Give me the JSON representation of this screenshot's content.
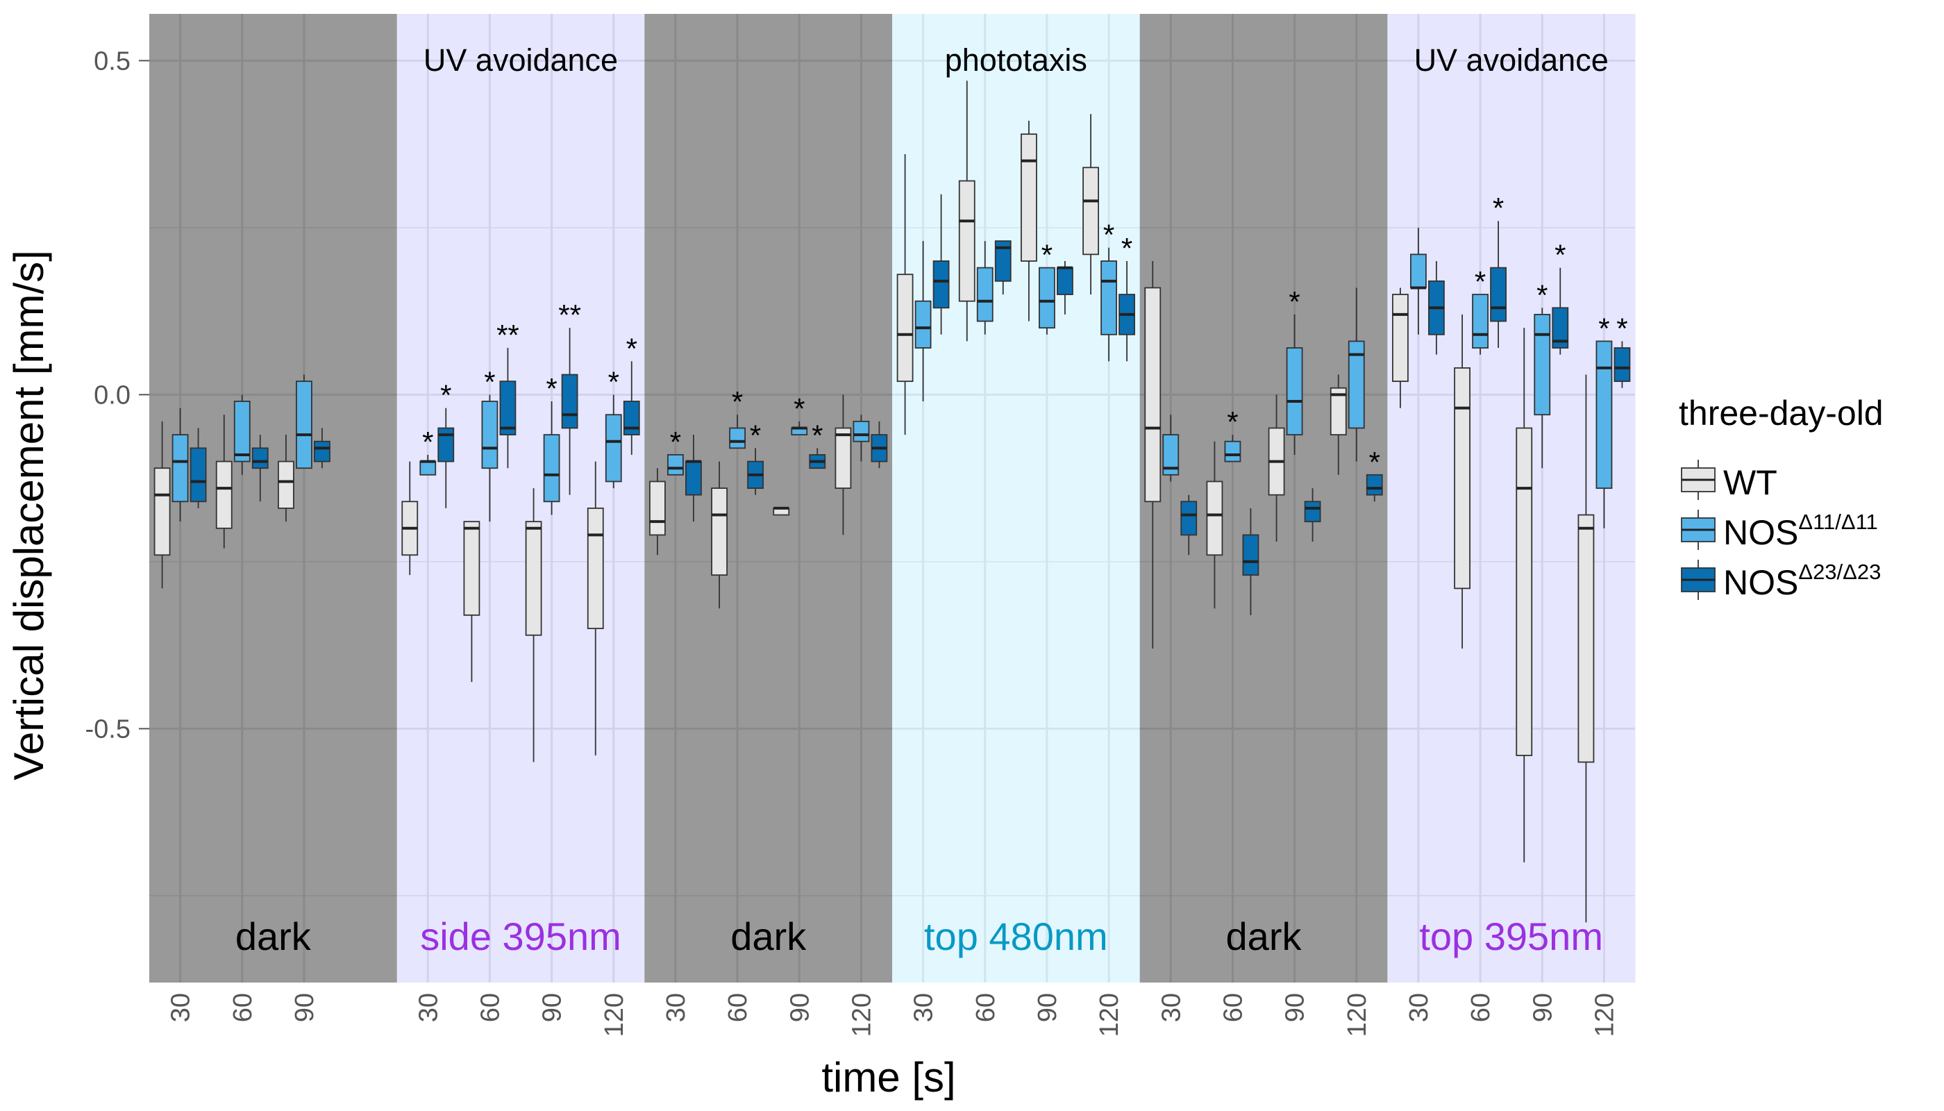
{
  "chart_data": {
    "type": "box",
    "ylabel": "Vertical displacement [mm/s]",
    "xlabel": "time [s]",
    "ylim": [
      -0.88,
      0.57
    ],
    "y_ticks": [
      0.5,
      0.0,
      -0.5
    ],
    "y_tick_labels": [
      "0.5",
      "0.0",
      "-0.5"
    ],
    "grid": true,
    "legend": {
      "title": "three-day-old",
      "position": "right",
      "entries": [
        {
          "base": "WT",
          "sup": "",
          "color": "#e6e6e6"
        },
        {
          "base": "NOS",
          "sup": "Δ11/Δ11",
          "color": "#56b4e9"
        },
        {
          "base": "NOS",
          "sup": "Δ23/Δ23",
          "color": "#0a6fb0"
        }
      ]
    },
    "colors": {
      "dark": "#999999",
      "uv": "#e6e6ff",
      "blue": "#e3f7ff",
      "uv_text": "#9b30e0",
      "blue_text": "#0899c4",
      "wt": "#e6e6e6",
      "nos11": "#56b4e9",
      "nos23": "#0a6fb0"
    },
    "panels": [
      {
        "title": "",
        "condition": "dark",
        "bg": "dark",
        "cond_color": "#000000",
        "ticks": [
          "30",
          "60",
          "90"
        ],
        "groups": [
          {
            "t": 30,
            "boxes": [
              [
                -0.29,
                -0.24,
                -0.15,
                -0.11,
                -0.04
              ],
              [
                -0.19,
                -0.16,
                -0.1,
                -0.06,
                -0.02
              ],
              [
                -0.17,
                -0.16,
                -0.13,
                -0.08,
                -0.05
              ]
            ],
            "stars": [
              "",
              "",
              ""
            ]
          },
          {
            "t": 60,
            "boxes": [
              [
                -0.23,
                -0.2,
                -0.14,
                -0.1,
                -0.03
              ],
              [
                -0.12,
                -0.1,
                -0.09,
                -0.01,
                0.0
              ],
              [
                -0.16,
                -0.11,
                -0.1,
                -0.08,
                -0.06
              ]
            ],
            "stars": [
              "",
              "",
              ""
            ]
          },
          {
            "t": 90,
            "boxes": [
              [
                -0.19,
                -0.17,
                -0.13,
                -0.1,
                -0.06
              ],
              [
                -0.11,
                -0.11,
                -0.06,
                0.02,
                0.03
              ],
              [
                -0.11,
                -0.1,
                -0.08,
                -0.07,
                -0.05
              ]
            ],
            "stars": [
              "",
              "",
              ""
            ]
          }
        ]
      },
      {
        "title": "UV avoidance",
        "condition": "side 395nm",
        "bg": "uv",
        "cond_color": "#9b30e0",
        "ticks": [
          "30",
          "60",
          "90",
          "120"
        ],
        "groups": [
          {
            "t": 30,
            "boxes": [
              [
                -0.27,
                -0.24,
                -0.2,
                -0.16,
                -0.1
              ],
              [
                -0.12,
                -0.12,
                -0.1,
                -0.1,
                -0.09
              ],
              [
                -0.17,
                -0.1,
                -0.06,
                -0.05,
                -0.02
              ]
            ],
            "stars": [
              "",
              "*",
              "*"
            ]
          },
          {
            "t": 60,
            "boxes": [
              [
                -0.43,
                -0.33,
                -0.2,
                -0.19,
                -0.19
              ],
              [
                -0.19,
                -0.11,
                -0.08,
                -0.01,
                0.0
              ],
              [
                -0.11,
                -0.06,
                -0.05,
                0.02,
                0.07
              ]
            ],
            "stars": [
              "",
              "*",
              "**"
            ]
          },
          {
            "t": 90,
            "boxes": [
              [
                -0.55,
                -0.36,
                -0.2,
                -0.19,
                -0.14
              ],
              [
                -0.18,
                -0.16,
                -0.12,
                -0.06,
                -0.01
              ],
              [
                -0.15,
                -0.05,
                -0.03,
                0.03,
                0.1
              ]
            ],
            "stars": [
              "",
              "*",
              "**"
            ]
          },
          {
            "t": 120,
            "boxes": [
              [
                -0.54,
                -0.35,
                -0.21,
                -0.17,
                -0.1
              ],
              [
                -0.14,
                -0.13,
                -0.07,
                -0.03,
                0.0
              ],
              [
                -0.09,
                -0.06,
                -0.05,
                -0.01,
                0.05
              ]
            ],
            "stars": [
              "",
              "*",
              "*"
            ]
          }
        ]
      },
      {
        "title": "",
        "condition": "dark",
        "bg": "dark",
        "cond_color": "#000000",
        "ticks": [
          "30",
          "60",
          "90",
          "120"
        ],
        "groups": [
          {
            "t": 30,
            "boxes": [
              [
                -0.24,
                -0.21,
                -0.19,
                -0.13,
                -0.11
              ],
              [
                -0.12,
                -0.12,
                -0.11,
                -0.09,
                -0.09
              ],
              [
                -0.19,
                -0.15,
                -0.1,
                -0.1,
                -0.06
              ]
            ],
            "stars": [
              "",
              "*",
              ""
            ]
          },
          {
            "t": 60,
            "boxes": [
              [
                -0.32,
                -0.27,
                -0.18,
                -0.14,
                -0.1
              ],
              [
                -0.08,
                -0.08,
                -0.07,
                -0.05,
                -0.03
              ],
              [
                -0.15,
                -0.14,
                -0.12,
                -0.1,
                -0.08
              ]
            ],
            "stars": [
              "",
              "*",
              "*"
            ]
          },
          {
            "t": 90,
            "boxes": [
              [
                -0.18,
                -0.18,
                -0.17,
                -0.17,
                -0.17
              ],
              [
                -0.06,
                -0.06,
                -0.05,
                -0.05,
                -0.04
              ],
              [
                -0.11,
                -0.11,
                -0.1,
                -0.09,
                -0.08
              ]
            ],
            "stars": [
              "",
              "*",
              "*"
            ]
          },
          {
            "t": 120,
            "boxes": [
              [
                -0.21,
                -0.14,
                -0.06,
                -0.05,
                0.0
              ],
              [
                -0.1,
                -0.07,
                -0.06,
                -0.04,
                -0.03
              ],
              [
                -0.11,
                -0.1,
                -0.08,
                -0.06,
                -0.04
              ]
            ],
            "stars": [
              "",
              "",
              ""
            ]
          }
        ]
      },
      {
        "title": "phototaxis",
        "condition": "top 480nm",
        "bg": "blue",
        "cond_color": "#0899c4",
        "ticks": [
          "30",
          "60",
          "90",
          "120"
        ],
        "groups": [
          {
            "t": 30,
            "boxes": [
              [
                -0.06,
                0.02,
                0.09,
                0.18,
                0.36
              ],
              [
                -0.01,
                0.07,
                0.1,
                0.14,
                0.23
              ],
              [
                0.09,
                0.13,
                0.17,
                0.2,
                0.3
              ]
            ],
            "stars": [
              "",
              "",
              ""
            ]
          },
          {
            "t": 60,
            "boxes": [
              [
                0.08,
                0.14,
                0.26,
                0.32,
                0.47
              ],
              [
                0.09,
                0.11,
                0.14,
                0.19,
                0.23
              ],
              [
                0.15,
                0.17,
                0.22,
                0.23,
                0.23
              ]
            ],
            "stars": [
              "",
              "",
              ""
            ]
          },
          {
            "t": 90,
            "boxes": [
              [
                0.11,
                0.2,
                0.35,
                0.39,
                0.41
              ],
              [
                0.09,
                0.1,
                0.14,
                0.19,
                0.19
              ],
              [
                0.12,
                0.15,
                0.19,
                0.19,
                0.2
              ]
            ],
            "stars": [
              "",
              "*",
              ""
            ]
          },
          {
            "t": 120,
            "boxes": [
              [
                0.15,
                0.21,
                0.29,
                0.34,
                0.42
              ],
              [
                0.05,
                0.09,
                0.17,
                0.2,
                0.22
              ],
              [
                0.05,
                0.09,
                0.12,
                0.15,
                0.2
              ]
            ],
            "stars": [
              "",
              "*",
              "*"
            ]
          }
        ]
      },
      {
        "title": "",
        "condition": "dark",
        "bg": "dark",
        "cond_color": "#000000",
        "ticks": [
          "30",
          "60",
          "90",
          "120"
        ],
        "groups": [
          {
            "t": 30,
            "boxes": [
              [
                -0.38,
                -0.16,
                -0.05,
                0.16,
                0.2
              ],
              [
                -0.13,
                -0.12,
                -0.11,
                -0.06,
                -0.03
              ],
              [
                -0.24,
                -0.21,
                -0.18,
                -0.16,
                -0.15
              ]
            ],
            "stars": [
              "",
              "",
              ""
            ]
          },
          {
            "t": 60,
            "boxes": [
              [
                -0.32,
                -0.24,
                -0.18,
                -0.13,
                -0.07
              ],
              [
                -0.1,
                -0.1,
                -0.09,
                -0.07,
                -0.06
              ],
              [
                -0.33,
                -0.27,
                -0.25,
                -0.21,
                -0.17
              ]
            ],
            "stars": [
              "",
              "*",
              ""
            ]
          },
          {
            "t": 90,
            "boxes": [
              [
                -0.22,
                -0.15,
                -0.1,
                -0.05,
                0.0
              ],
              [
                -0.09,
                -0.06,
                -0.01,
                0.07,
                0.12
              ],
              [
                -0.22,
                -0.19,
                -0.17,
                -0.16,
                -0.14
              ]
            ],
            "stars": [
              "",
              "*",
              ""
            ]
          },
          {
            "t": 120,
            "boxes": [
              [
                -0.12,
                -0.06,
                0.0,
                0.01,
                0.03
              ],
              [
                -0.1,
                -0.05,
                0.06,
                0.08,
                0.16
              ],
              [
                -0.16,
                -0.15,
                -0.14,
                -0.12,
                -0.12
              ]
            ],
            "stars": [
              "",
              "",
              "*"
            ]
          }
        ]
      },
      {
        "title": "UV avoidance",
        "condition": "top 395nm",
        "bg": "uv",
        "cond_color": "#9b30e0",
        "ticks": [
          "30",
          "60",
          "90",
          "120"
        ],
        "groups": [
          {
            "t": 30,
            "boxes": [
              [
                -0.02,
                0.02,
                0.12,
                0.15,
                0.16
              ],
              [
                0.09,
                0.16,
                0.16,
                0.21,
                0.25
              ],
              [
                0.06,
                0.09,
                0.13,
                0.17,
                0.2
              ]
            ],
            "stars": [
              "",
              "",
              ""
            ]
          },
          {
            "t": 60,
            "boxes": [
              [
                -0.38,
                -0.29,
                -0.02,
                0.04,
                0.12
              ],
              [
                0.06,
                0.07,
                0.09,
                0.15,
                0.15
              ],
              [
                0.07,
                0.11,
                0.13,
                0.19,
                0.26
              ]
            ],
            "stars": [
              "",
              "*",
              "*"
            ]
          },
          {
            "t": 90,
            "boxes": [
              [
                -0.7,
                -0.54,
                -0.14,
                -0.05,
                0.1
              ],
              [
                -0.11,
                -0.03,
                0.09,
                0.12,
                0.13
              ],
              [
                0.06,
                0.07,
                0.08,
                0.13,
                0.19
              ]
            ],
            "stars": [
              "",
              "*",
              "*"
            ]
          },
          {
            "t": 120,
            "boxes": [
              [
                -0.79,
                -0.55,
                -0.2,
                -0.18,
                0.03
              ],
              [
                -0.2,
                -0.14,
                0.04,
                0.08,
                0.08
              ],
              [
                0.01,
                0.02,
                0.04,
                0.07,
                0.08
              ]
            ],
            "stars": [
              "",
              "*",
              "*"
            ]
          }
        ]
      }
    ]
  }
}
